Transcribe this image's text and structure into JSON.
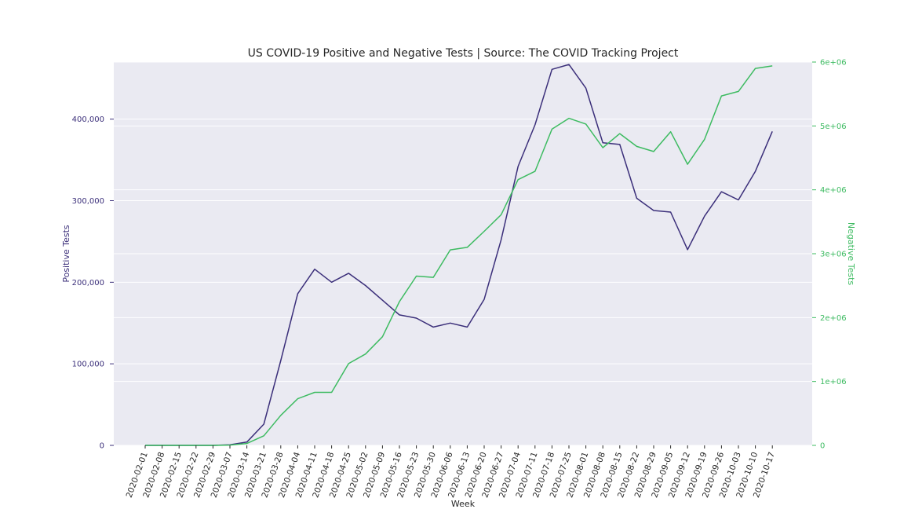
{
  "chart_data": {
    "type": "line",
    "title": "US COVID-19 Positive and Negative Tests | Source: The COVID Tracking Project",
    "xlabel": "Week",
    "ylabel_left": "Positive Tests",
    "ylabel_right": "Negative Tests",
    "categories": [
      "2020-02-01",
      "2020-02-08",
      "2020-02-15",
      "2020-02-22",
      "2020-02-29",
      "2020-03-07",
      "2020-03-14",
      "2020-03-21",
      "2020-03-28",
      "2020-04-04",
      "2020-04-11",
      "2020-04-18",
      "2020-04-25",
      "2020-05-02",
      "2020-05-09",
      "2020-05-16",
      "2020-05-23",
      "2020-05-30",
      "2020-06-06",
      "2020-06-13",
      "2020-06-20",
      "2020-06-27",
      "2020-07-04",
      "2020-07-11",
      "2020-07-18",
      "2020-07-25",
      "2020-08-01",
      "2020-08-08",
      "2020-08-15",
      "2020-08-22",
      "2020-08-29",
      "2020-09-05",
      "2020-09-12",
      "2020-09-19",
      "2020-09-26",
      "2020-10-03",
      "2020-10-10",
      "2020-10-17"
    ],
    "series": [
      {
        "name": "Positive Tests",
        "axis": "left",
        "color": "#3b2f7a",
        "values": [
          0,
          0,
          0,
          0,
          0,
          800,
          4000,
          26000,
          104000,
          186000,
          216000,
          200000,
          211000,
          196000,
          178000,
          160000,
          156000,
          145000,
          150000,
          145000,
          179000,
          252000,
          342000,
          393000,
          461000,
          467000,
          438000,
          371000,
          369000,
          303000,
          288000,
          286000,
          240000,
          281000,
          311000,
          301000,
          336000,
          385000
        ]
      },
      {
        "name": "Negative Tests",
        "axis": "right",
        "color": "#3dbb61",
        "values": [
          0,
          0,
          0,
          0,
          0,
          5000,
          30000,
          150000,
          470000,
          730000,
          830000,
          830000,
          1280000,
          1430000,
          1700000,
          2250000,
          2650000,
          2630000,
          3060000,
          3100000,
          3350000,
          3610000,
          4160000,
          4290000,
          4950000,
          5120000,
          5030000,
          4660000,
          4880000,
          4680000,
          4600000,
          4910000,
          4400000,
          4790000,
          5470000,
          5540000,
          5900000,
          5940000
        ]
      }
    ],
    "ylim_left": [
      0,
      470000
    ],
    "ylim_right": [
      0,
      6000000
    ],
    "yticks_left": [
      0,
      100000,
      200000,
      300000,
      400000
    ],
    "yticks_left_labels": [
      "0",
      "100,000",
      "200,000",
      "300,000",
      "400,000"
    ],
    "yticks_right": [
      0,
      1000000,
      2000000,
      3000000,
      4000000,
      5000000,
      6000000
    ],
    "yticks_right_labels": [
      "0",
      "1e+06",
      "2e+06",
      "3e+06",
      "4e+06",
      "5e+06",
      "6e+06"
    ],
    "grid": true,
    "background": "#eaeaf2"
  }
}
